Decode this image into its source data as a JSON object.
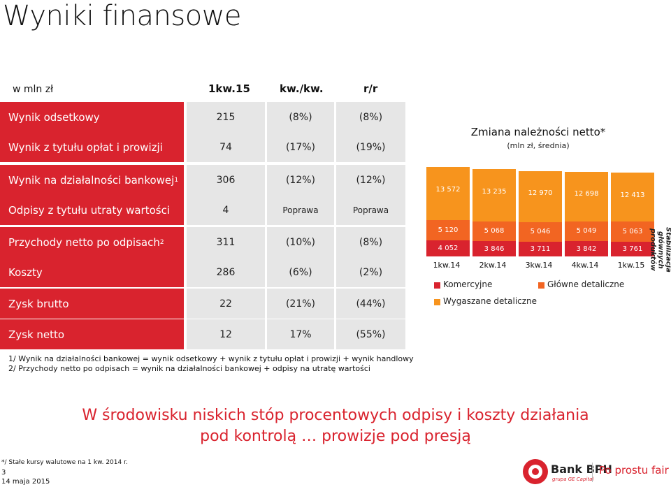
{
  "title": "Wyniki finansowe",
  "table": {
    "unit": "w mln zł",
    "headers": [
      "1kw.15",
      "kw./kw.",
      "r/r"
    ],
    "rows": [
      {
        "label": "Wynik odsetkowy",
        "sup": "",
        "values": [
          "215",
          "(8%)",
          "(8%)"
        ]
      },
      {
        "label": "Wynik z tytułu opłat i prowizji",
        "sup": "",
        "values": [
          "74",
          "(17%)",
          "(19%)"
        ]
      },
      {
        "label": "Wynik na działalności bankowej",
        "sup": "1",
        "values": [
          "306",
          "(12%)",
          "(12%)"
        ]
      },
      {
        "label": "Odpisy z tytułu utraty wartości",
        "sup": "",
        "values": [
          "4",
          "Poprawa",
          "Poprawa"
        ]
      },
      {
        "label": "Przychody netto po odpisach",
        "sup": "2",
        "values": [
          "311",
          "(10%)",
          "(8%)"
        ]
      },
      {
        "label": "Koszty",
        "sup": "",
        "values": [
          "286",
          "(6%)",
          "(2%)"
        ]
      },
      {
        "label": "Zysk brutto",
        "sup": "",
        "values": [
          "22",
          "(21%)",
          "(44%)"
        ]
      },
      {
        "label": "Zysk netto",
        "sup": "",
        "values": [
          "12",
          "17%",
          "(55%)"
        ]
      }
    ]
  },
  "chart_data": {
    "type": "bar",
    "stacked": true,
    "title": "Zmiana należności netto*",
    "subtitle": "(mln zł, średnia)",
    "categories": [
      "1kw.14",
      "2kw.14",
      "3kw.14",
      "4kw.14",
      "1kw.15"
    ],
    "series": [
      {
        "name": "Wygaszane detaliczne",
        "color": "#d9232e",
        "values": [
          4052,
          3846,
          3711,
          3842,
          3761
        ]
      },
      {
        "name": "Główne detaliczne",
        "color": "#f26522",
        "values": [
          5120,
          5068,
          5046,
          5049,
          5063
        ]
      },
      {
        "name": "Komercyjne",
        "color": "#f7941d",
        "values": [
          13572,
          13235,
          12970,
          12698,
          12413
        ]
      }
    ],
    "labels": {
      "wygaszane": [
        "4 052",
        "3 846",
        "3 711",
        "3 842",
        "3 761"
      ],
      "glowne": [
        "5 120",
        "5 068",
        "5 046",
        "5 049",
        "5 063"
      ],
      "komercyjne": [
        "13 572",
        "13 235",
        "12 970",
        "12 698",
        "12 413"
      ]
    },
    "legend": [
      "Komercyjne",
      "Główne detaliczne",
      "Wygaszane detaliczne"
    ],
    "side_note": "Stabilizacja głównych produktów"
  },
  "footnotes": [
    "1/ Wynik na działalności bankowej = wynik odsetkowy + wynik z tytułu opłat i prowizji + wynik handlowy",
    "2/ Przychody netto po odpisach = wynik na działalności bankowej + odpisy na utratę wartości"
  ],
  "headline": {
    "line1": "W środowisku niskich stóp procentowych odpisy i koszty działania",
    "line2": "pod kontrolą … prowizje pod presją"
  },
  "bottom": {
    "note": "*/ Stałe kursy walutowe na 1 kw. 2014 r.",
    "page": "3",
    "date": "14 maja 2015"
  },
  "brand": {
    "name": "Bank BPH",
    "sub": "grupa GE Capital",
    "tagline": "Po prostu fair"
  }
}
